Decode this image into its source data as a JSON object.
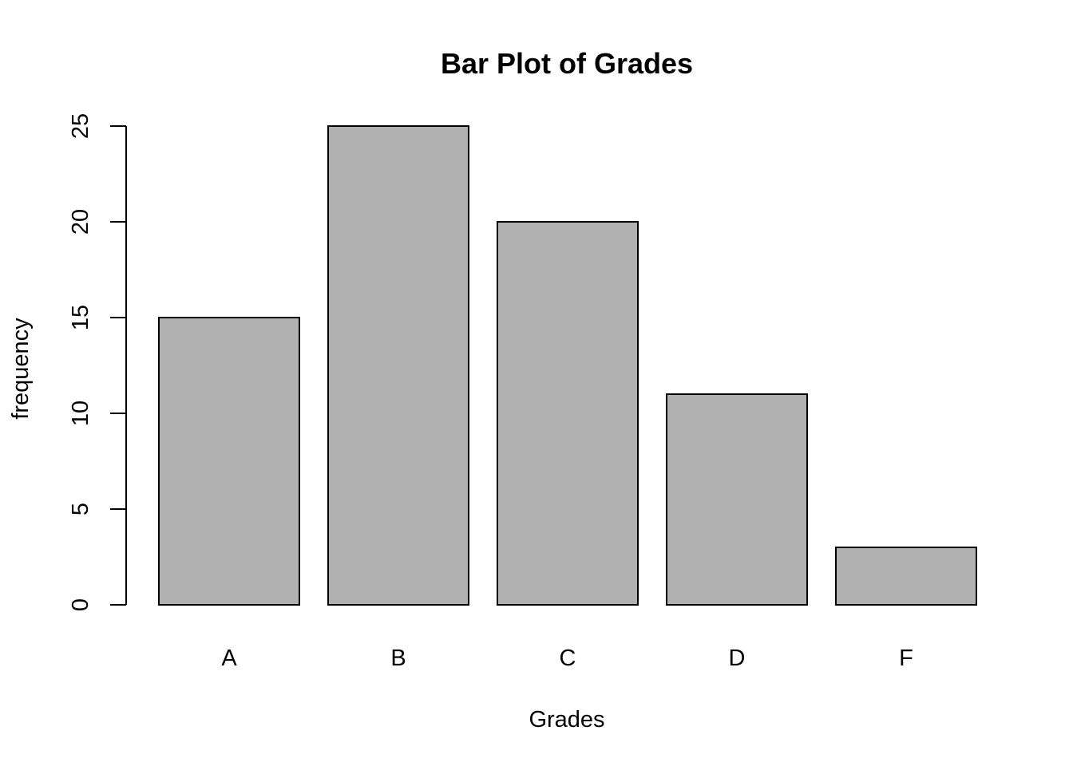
{
  "chart_data": {
    "type": "bar",
    "title": "Bar Plot of Grades",
    "xlabel": "Grades",
    "ylabel": "frequency",
    "categories": [
      "A",
      "B",
      "C",
      "D",
      "F"
    ],
    "values": [
      15,
      25,
      20,
      11,
      3
    ],
    "ylim": [
      0,
      25
    ],
    "yticks": [
      "0",
      "5",
      "10",
      "15",
      "20",
      "25"
    ],
    "grid": false,
    "legend": "none",
    "colors": {
      "bar_fill": "#b0b0b0",
      "bar_stroke": "#000000",
      "axis": "#000000",
      "background": "#ffffff"
    }
  }
}
